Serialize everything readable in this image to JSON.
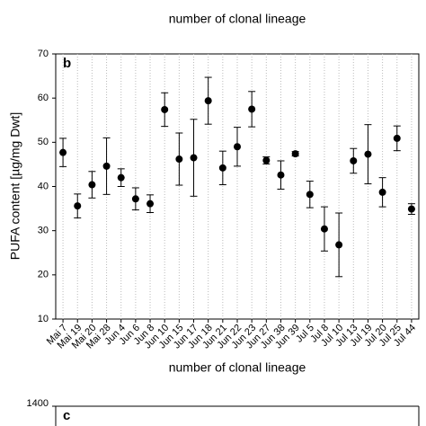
{
  "top_xlabel": "number of clonal lineage",
  "chart_data": {
    "type": "errorbar",
    "panel_label": "b",
    "xlabel": "number of clonal lineage",
    "ylabel": "PUFA content [µg/mg Dwt]",
    "categories": [
      "Mai 7",
      "Mai 19",
      "Mai 20",
      "Mai 28",
      "Jun 4",
      "Jun 6",
      "Jun 8",
      "Jun 10",
      "Jun 15",
      "Jun 17",
      "Jun 18",
      "Jun 21",
      "Jun 22",
      "Jun 23",
      "Jun 27",
      "Jun 38",
      "Jun 39",
      "Jul 5",
      "Jul 8",
      "Jul 10",
      "Jul 13",
      "Jul 19",
      "Jul 20",
      "Jul 25",
      "Jul 44"
    ],
    "values": [
      47.7,
      35.6,
      40.4,
      44.6,
      42.0,
      37.2,
      36.1,
      57.4,
      46.2,
      46.5,
      59.4,
      44.2,
      49.0,
      57.5,
      45.9,
      42.6,
      47.4,
      38.2,
      30.4,
      26.8,
      45.8,
      47.3,
      38.7,
      50.9,
      34.9
    ],
    "errors": [
      3.2,
      2.7,
      3.0,
      6.4,
      2.0,
      2.5,
      2.0,
      3.8,
      5.9,
      8.7,
      5.3,
      3.8,
      4.4,
      4.0,
      0.8,
      3.2,
      0.5,
      3.0,
      5.0,
      7.2,
      2.8,
      6.7,
      3.3,
      2.8,
      1.2
    ],
    "color": "#000000",
    "ylim": [
      10,
      70
    ],
    "yticks": [
      10,
      20,
      30,
      40,
      50,
      60,
      70
    ],
    "grid": true
  },
  "panel_c": {
    "panel_label": "c",
    "yticks": [
      1400
    ]
  }
}
